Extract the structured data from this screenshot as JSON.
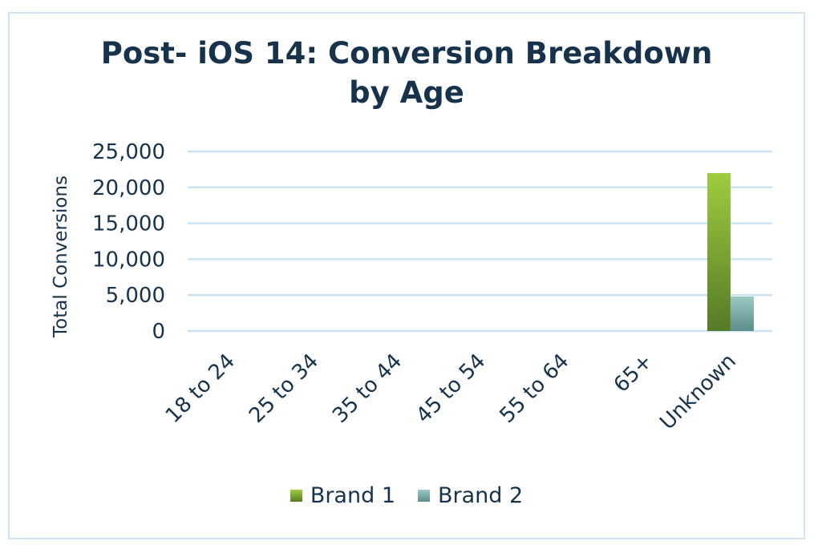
{
  "chart_data": {
    "type": "bar",
    "title": "Post- iOS 14: Conversion Breakdown by Age",
    "title_lines": [
      "Post- iOS 14: Conversion Breakdown",
      "by Age"
    ],
    "xlabel": "",
    "ylabel": "Total Conversions",
    "categories": [
      "18 to 24",
      "25 to 34",
      "35 to 44",
      "45 to 54",
      "55 to 64",
      "65+",
      "Unknown"
    ],
    "series": [
      {
        "name": "Brand 1",
        "values": [
          0,
          0,
          0,
          0,
          0,
          0,
          22000
        ],
        "color_top": "#9fcc3f",
        "color_bottom": "#567a26"
      },
      {
        "name": "Brand 2",
        "values": [
          0,
          0,
          0,
          0,
          0,
          0,
          4800
        ],
        "color_top": "#9cc9c4",
        "color_bottom": "#5c8d8c"
      }
    ],
    "ylim": [
      0,
      25000
    ],
    "yticks": [
      "0",
      "5,000",
      "10,000",
      "15,000",
      "20,000",
      "25,000"
    ],
    "grid": true,
    "legend_position": "bottom",
    "colors": {
      "text": "#17324b",
      "grid": "#c9e3f3",
      "frame": "#cfe3f1"
    }
  }
}
